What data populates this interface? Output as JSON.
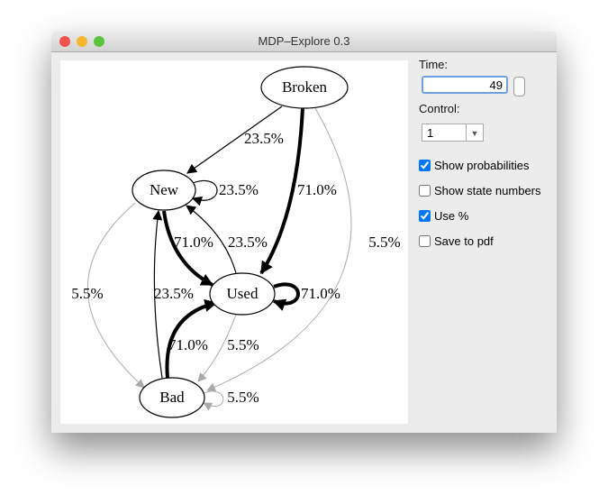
{
  "window": {
    "title": "MDP–Explore 0.3"
  },
  "graph": {
    "nodes": [
      {
        "label": "Broken"
      },
      {
        "label": "New"
      },
      {
        "label": "Used"
      },
      {
        "label": "Bad"
      }
    ],
    "edges": [
      {
        "label": "23.5%"
      },
      {
        "label": "71.0%"
      },
      {
        "label": "5.5%"
      },
      {
        "label": "23.5%"
      },
      {
        "label": "71.0%"
      },
      {
        "label": "5.5%"
      },
      {
        "label": "23.5%"
      },
      {
        "label": "71.0%"
      },
      {
        "label": "5.5%"
      },
      {
        "label": "23.5%"
      },
      {
        "label": "71.0%"
      },
      {
        "label": "5.5%"
      }
    ]
  },
  "panel": {
    "time_label": "Time:",
    "time_value": 49,
    "control_label": "Control:",
    "control_value": "1",
    "checkboxes": [
      {
        "label": "Show probabilities",
        "checked": true
      },
      {
        "label": "Show state numbers",
        "checked": false
      },
      {
        "label": "Use %",
        "checked": true
      },
      {
        "label": "Save to pdf",
        "checked": false
      }
    ]
  }
}
